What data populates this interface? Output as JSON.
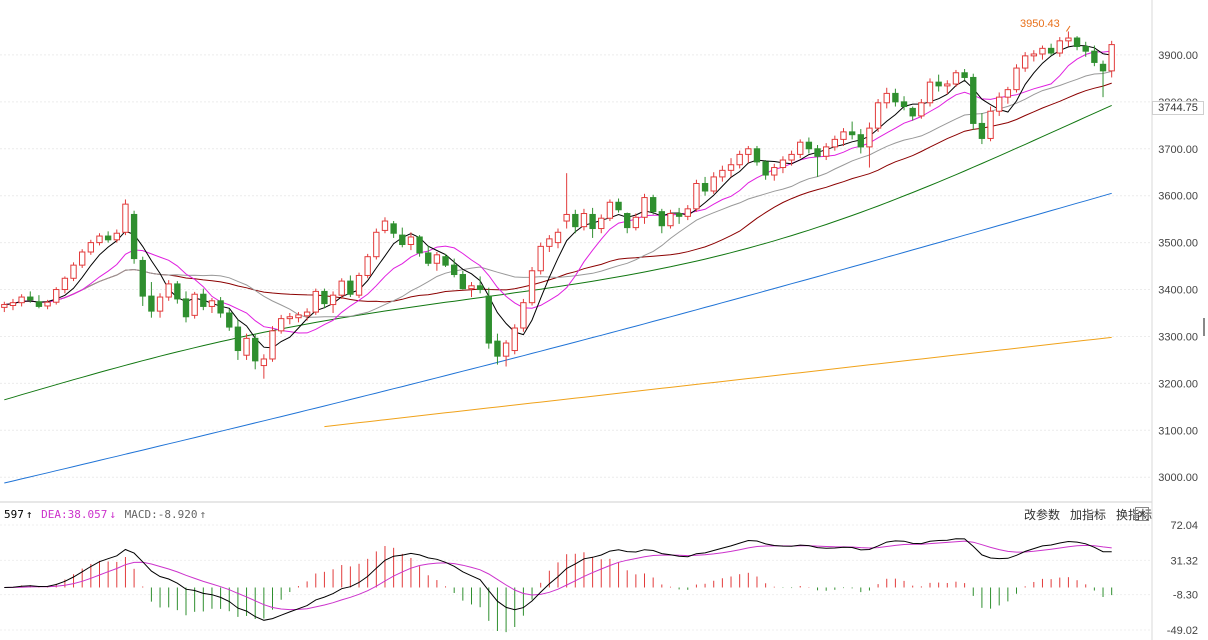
{
  "toolbar": {
    "btn1": "改参数",
    "btn2": "加指标",
    "btn3": "换指标",
    "close": "✕"
  },
  "macd_legend": {
    "dif_text": "597",
    "dif_arrow": "↑",
    "dea_text": "DEA:38.057",
    "dea_arrow": "↓",
    "macd_text": "MACD:-8.920",
    "macd_arrow": "↑"
  },
  "colors": {
    "up": "#e23b3b",
    "down": "#2f8f2f",
    "ma5": "#000000",
    "ma10": "#e020e0",
    "ma20": "#999999",
    "ma30": "#8b0000",
    "ma60": "#117711",
    "ma120": "#1f73d6",
    "ma250": "#f0a21a",
    "dif": "#000000",
    "dea": "#cc33cc"
  },
  "chart_data": [
    {
      "type": "candlestick",
      "y_ticks": [
        "3000.00",
        "3100.00",
        "3200.00",
        "3300.00",
        "3400.00",
        "3500.00",
        "3600.00",
        "3700.00",
        "3800.00",
        "3900.00"
      ],
      "ylim": [
        2960,
        4000
      ],
      "current_price": "3744.75",
      "max_label": "3950.43",
      "candles": [
        [
          3362,
          3374,
          3352,
          3368
        ],
        [
          3366,
          3380,
          3356,
          3372
        ],
        [
          3372,
          3390,
          3364,
          3384
        ],
        [
          3384,
          3396,
          3372,
          3378
        ],
        [
          3374,
          3388,
          3360,
          3364
        ],
        [
          3365,
          3378,
          3358,
          3373
        ],
        [
          3373,
          3405,
          3368,
          3400
        ],
        [
          3400,
          3428,
          3392,
          3424
        ],
        [
          3424,
          3458,
          3418,
          3452
        ],
        [
          3452,
          3486,
          3446,
          3480
        ],
        [
          3480,
          3506,
          3474,
          3500
        ],
        [
          3500,
          3520,
          3494,
          3514
        ],
        [
          3514,
          3524,
          3500,
          3506
        ],
        [
          3506,
          3528,
          3500,
          3520
        ],
        [
          3522,
          3592,
          3516,
          3582
        ],
        [
          3560,
          3568,
          3455,
          3466
        ],
        [
          3462,
          3470,
          3365,
          3386
        ],
        [
          3386,
          3416,
          3340,
          3354
        ],
        [
          3354,
          3392,
          3340,
          3384
        ],
        [
          3384,
          3420,
          3376,
          3412
        ],
        [
          3412,
          3418,
          3370,
          3380
        ],
        [
          3380,
          3396,
          3330,
          3342
        ],
        [
          3345,
          3395,
          3338,
          3390
        ],
        [
          3390,
          3402,
          3356,
          3364
        ],
        [
          3364,
          3382,
          3350,
          3376
        ],
        [
          3376,
          3384,
          3340,
          3350
        ],
        [
          3350,
          3358,
          3312,
          3320
        ],
        [
          3320,
          3336,
          3250,
          3270
        ],
        [
          3260,
          3306,
          3250,
          3296
        ],
        [
          3296,
          3306,
          3230,
          3248
        ],
        [
          3238,
          3262,
          3210,
          3252
        ],
        [
          3252,
          3322,
          3246,
          3312
        ],
        [
          3312,
          3346,
          3306,
          3338
        ],
        [
          3338,
          3350,
          3326,
          3342
        ],
        [
          3340,
          3352,
          3330,
          3346
        ],
        [
          3344,
          3360,
          3334,
          3352
        ],
        [
          3352,
          3402,
          3346,
          3396
        ],
        [
          3396,
          3402,
          3360,
          3370
        ],
        [
          3368,
          3396,
          3350,
          3388
        ],
        [
          3388,
          3424,
          3380,
          3418
        ],
        [
          3418,
          3430,
          3384,
          3390
        ],
        [
          3388,
          3436,
          3382,
          3430
        ],
        [
          3430,
          3476,
          3424,
          3470
        ],
        [
          3470,
          3530,
          3464,
          3522
        ],
        [
          3526,
          3554,
          3520,
          3546
        ],
        [
          3540,
          3546,
          3510,
          3520
        ],
        [
          3516,
          3532,
          3490,
          3496
        ],
        [
          3496,
          3522,
          3484,
          3512
        ],
        [
          3512,
          3516,
          3470,
          3478
        ],
        [
          3478,
          3494,
          3450,
          3456
        ],
        [
          3456,
          3480,
          3440,
          3474
        ],
        [
          3470,
          3476,
          3448,
          3452
        ],
        [
          3452,
          3466,
          3426,
          3432
        ],
        [
          3432,
          3440,
          3400,
          3402
        ],
        [
          3402,
          3416,
          3384,
          3408
        ],
        [
          3408,
          3428,
          3392,
          3400
        ],
        [
          3386,
          3404,
          3274,
          3286
        ],
        [
          3290,
          3306,
          3240,
          3258
        ],
        [
          3258,
          3292,
          3236,
          3286
        ],
        [
          3270,
          3326,
          3262,
          3318
        ],
        [
          3318,
          3380,
          3310,
          3372
        ],
        [
          3372,
          3448,
          3366,
          3440
        ],
        [
          3440,
          3500,
          3432,
          3492
        ],
        [
          3492,
          3516,
          3480,
          3508
        ],
        [
          3500,
          3530,
          3488,
          3522
        ],
        [
          3546,
          3648,
          3530,
          3560
        ],
        [
          3560,
          3570,
          3520,
          3534
        ],
        [
          3534,
          3572,
          3526,
          3562
        ],
        [
          3560,
          3574,
          3510,
          3530
        ],
        [
          3530,
          3560,
          3520,
          3552
        ],
        [
          3552,
          3592,
          3546,
          3586
        ],
        [
          3586,
          3594,
          3564,
          3570
        ],
        [
          3562,
          3564,
          3520,
          3532
        ],
        [
          3532,
          3562,
          3526,
          3554
        ],
        [
          3554,
          3604,
          3540,
          3596
        ],
        [
          3596,
          3602,
          3560,
          3566
        ],
        [
          3566,
          3572,
          3520,
          3536
        ],
        [
          3536,
          3570,
          3530,
          3562
        ],
        [
          3562,
          3574,
          3540,
          3556
        ],
        [
          3556,
          3580,
          3548,
          3572
        ],
        [
          3572,
          3634,
          3566,
          3626
        ],
        [
          3626,
          3640,
          3600,
          3610
        ],
        [
          3610,
          3650,
          3604,
          3640
        ],
        [
          3640,
          3664,
          3630,
          3654
        ],
        [
          3654,
          3680,
          3640,
          3666
        ],
        [
          3666,
          3696,
          3658,
          3688
        ],
        [
          3688,
          3706,
          3670,
          3700
        ],
        [
          3700,
          3706,
          3664,
          3672
        ],
        [
          3672,
          3676,
          3634,
          3644
        ],
        [
          3644,
          3668,
          3632,
          3660
        ],
        [
          3660,
          3684,
          3648,
          3676
        ],
        [
          3676,
          3696,
          3664,
          3688
        ],
        [
          3688,
          3720,
          3680,
          3714
        ],
        [
          3714,
          3724,
          3690,
          3700
        ],
        [
          3700,
          3708,
          3640,
          3684
        ],
        [
          3684,
          3712,
          3676,
          3704
        ],
        [
          3704,
          3728,
          3696,
          3720
        ],
        [
          3720,
          3744,
          3706,
          3736
        ],
        [
          3736,
          3758,
          3720,
          3730
        ],
        [
          3730,
          3742,
          3690,
          3704
        ],
        [
          3704,
          3756,
          3660,
          3744
        ],
        [
          3744,
          3806,
          3736,
          3798
        ],
        [
          3798,
          3830,
          3786,
          3818
        ],
        [
          3818,
          3828,
          3790,
          3800
        ],
        [
          3800,
          3812,
          3782,
          3790
        ],
        [
          3786,
          3790,
          3760,
          3770
        ],
        [
          3770,
          3806,
          3764,
          3798
        ],
        [
          3798,
          3850,
          3790,
          3842
        ],
        [
          3842,
          3858,
          3822,
          3834
        ],
        [
          3834,
          3846,
          3816,
          3838
        ],
        [
          3838,
          3868,
          3832,
          3862
        ],
        [
          3862,
          3870,
          3846,
          3852
        ],
        [
          3852,
          3860,
          3740,
          3754
        ],
        [
          3754,
          3776,
          3710,
          3722
        ],
        [
          3722,
          3790,
          3716,
          3780
        ],
        [
          3780,
          3820,
          3770,
          3810
        ],
        [
          3810,
          3832,
          3796,
          3826
        ],
        [
          3826,
          3880,
          3820,
          3872
        ],
        [
          3872,
          3906,
          3864,
          3898
        ],
        [
          3898,
          3910,
          3886,
          3902
        ],
        [
          3902,
          3920,
          3890,
          3914
        ],
        [
          3914,
          3924,
          3898,
          3904
        ],
        [
          3904,
          3938,
          3896,
          3930
        ],
        [
          3930,
          3950,
          3918,
          3936
        ],
        [
          3936,
          3940,
          3910,
          3918
        ],
        [
          3918,
          3928,
          3896,
          3908
        ],
        [
          3908,
          3920,
          3876,
          3884
        ],
        [
          3880,
          3888,
          3810,
          3866
        ],
        [
          3866,
          3930,
          3852,
          3922
        ]
      ]
    },
    {
      "type": "macd",
      "y_ticks": [
        "72.04",
        "31.32",
        "-8.30",
        "-49.02"
      ],
      "ylim": [
        -49.02,
        72.04
      ]
    }
  ]
}
